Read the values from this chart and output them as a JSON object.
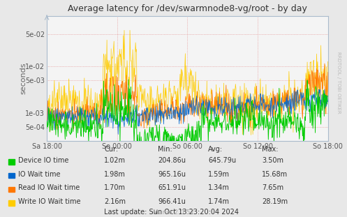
{
  "title": "Average latency for /dev/swarmnode8-vg/root - by day",
  "ylabel": "seconds",
  "outer_bg": "#e8e8e8",
  "plot_bg": "#f0f0f0",
  "colors": {
    "device_io": "#00cc00",
    "io_wait": "#0066cc",
    "read_io": "#ff7700",
    "write_io": "#ffcc00"
  },
  "x_ticks_labels": [
    "Sa 18:00",
    "So 00:00",
    "So 06:00",
    "So 12:00",
    "So 18:00"
  ],
  "yticks": [
    0.0005,
    0.001,
    0.005,
    0.01,
    0.05
  ],
  "ytick_labels": [
    "5e-04",
    "1e-03",
    "5e-03",
    "1e-02",
    "5e-02"
  ],
  "ylim": [
    0.00025,
    0.12
  ],
  "legend": [
    {
      "label": "Device IO time",
      "color": "#00cc00"
    },
    {
      "label": "IO Wait time",
      "color": "#0066cc"
    },
    {
      "label": "Read IO Wait time",
      "color": "#ff7700"
    },
    {
      "label": "Write IO Wait time",
      "color": "#ffcc00"
    }
  ],
  "stats_headers": [
    "Cur:",
    "Min:",
    "Avg:",
    "Max:"
  ],
  "stats_rows": [
    [
      "Device IO time",
      "1.02m",
      "204.86u",
      "645.79u",
      "3.50m"
    ],
    [
      "IO Wait time",
      "1.98m",
      "965.16u",
      "1.59m",
      "15.68m"
    ],
    [
      "Read IO Wait time",
      "1.70m",
      "651.91u",
      "1.34m",
      "7.65m"
    ],
    [
      "Write IO Wait time",
      "2.16m",
      "966.41u",
      "1.74m",
      "28.19m"
    ]
  ],
  "last_update": "Last update: Sun Oct 13 23:20:04 2024",
  "munin_version": "Munin 2.0.57",
  "rrdtool_text": "RRDTOOL / TOBI OETIKER",
  "n_points": 600,
  "seed": 42
}
